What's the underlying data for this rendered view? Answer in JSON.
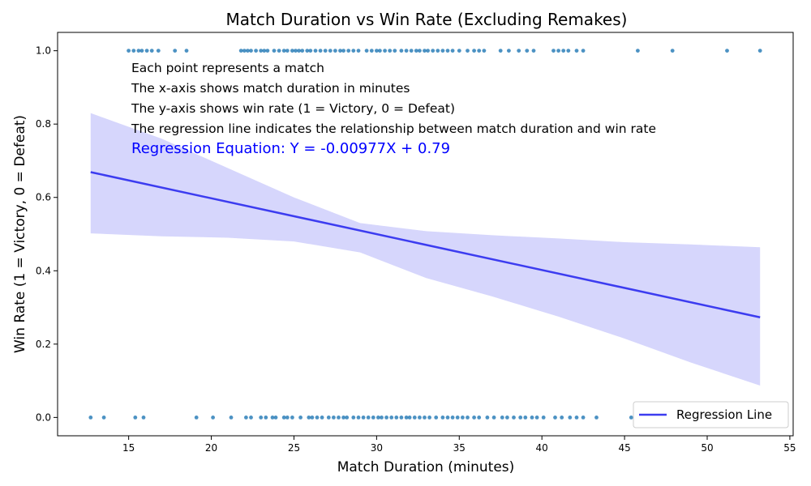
{
  "chart_data": {
    "type": "scatter",
    "title": "Match Duration vs Win Rate (Excluding Remakes)",
    "xlabel": "Match Duration (minutes)",
    "ylabel": "Win Rate (1 = Victory, 0 = Defeat)",
    "xlim": [
      10.7,
      55.2
    ],
    "ylim": [
      -0.05,
      1.05
    ],
    "xticks": [
      15,
      20,
      25,
      30,
      35,
      40,
      45,
      50,
      55
    ],
    "yticks": [
      0.0,
      0.2,
      0.4,
      0.6,
      0.8,
      1.0
    ],
    "grid": false,
    "legend": {
      "position": "bottom-right",
      "entries": [
        "Regression Line"
      ]
    },
    "annotations": [
      "Each point represents a match",
      "The x-axis shows match duration in minutes",
      "The y-axis shows win rate (1 = Victory, 0 = Defeat)",
      "The regression line indicates the relationship between match duration and win rate"
    ],
    "equation": "Regression Equation: Y = -0.00977X + 0.79",
    "colors": {
      "points": "#1f77b4",
      "regression": "#3c3cf0",
      "band": "#d6d6fc"
    },
    "series": [
      {
        "name": "Victory",
        "y": 1,
        "x": [
          15.0,
          15.3,
          15.6,
          15.8,
          16.1,
          16.4,
          16.8,
          17.8,
          18.5,
          21.8,
          22.0,
          22.2,
          22.4,
          22.7,
          23.0,
          23.2,
          23.4,
          23.8,
          24.1,
          24.4,
          24.6,
          24.9,
          25.1,
          25.3,
          25.5,
          25.8,
          26.0,
          26.3,
          26.6,
          26.9,
          27.2,
          27.5,
          27.8,
          28.0,
          28.3,
          28.6,
          28.9,
          29.4,
          29.7,
          30.0,
          30.2,
          30.5,
          30.8,
          31.1,
          31.5,
          31.8,
          32.1,
          32.4,
          32.6,
          32.9,
          33.1,
          33.4,
          33.7,
          34.0,
          34.3,
          34.6,
          35.0,
          35.5,
          35.9,
          36.2,
          36.5,
          37.5,
          38.0,
          38.6,
          39.1,
          39.5,
          40.7,
          41.0,
          41.3,
          41.6,
          42.1,
          42.5,
          45.8,
          47.9,
          51.2,
          53.2
        ],
        "fit_y": []
      },
      {
        "name": "Defeat",
        "y": 0,
        "x": [
          12.7,
          13.5,
          15.4,
          15.9,
          19.1,
          20.1,
          21.2,
          22.1,
          22.4,
          23.0,
          23.3,
          23.7,
          23.9,
          24.4,
          24.6,
          24.9,
          25.4,
          25.9,
          26.1,
          26.4,
          26.7,
          27.1,
          27.4,
          27.7,
          28.0,
          28.2,
          28.6,
          28.9,
          29.2,
          29.5,
          29.8,
          30.1,
          30.3,
          30.6,
          30.9,
          31.2,
          31.5,
          31.8,
          32.0,
          32.3,
          32.6,
          32.9,
          33.2,
          33.6,
          34.0,
          34.3,
          34.6,
          34.9,
          35.2,
          35.5,
          35.9,
          36.2,
          36.7,
          37.1,
          37.6,
          37.9,
          38.3,
          38.7,
          39.0,
          39.4,
          39.7,
          40.1,
          40.8,
          41.2,
          41.7,
          42.1,
          42.5,
          43.3,
          45.4
        ]
      }
    ],
    "regression": {
      "name": "Regression Line",
      "x": [
        12.7,
        53.2
      ],
      "y": [
        0.669,
        0.273
      ],
      "ci_upper": [
        [
          12.7,
          0.83
        ],
        [
          17,
          0.76
        ],
        [
          21,
          0.68
        ],
        [
          25,
          0.6
        ],
        [
          29,
          0.53
        ],
        [
          33,
          0.508
        ],
        [
          37,
          0.497
        ],
        [
          41,
          0.488
        ],
        [
          45,
          0.478
        ],
        [
          49,
          0.472
        ],
        [
          53.2,
          0.464
        ]
      ],
      "ci_lower": [
        [
          12.7,
          0.502
        ],
        [
          17,
          0.494
        ],
        [
          21,
          0.49
        ],
        [
          25,
          0.48
        ],
        [
          29,
          0.45
        ],
        [
          31,
          0.415
        ],
        [
          33,
          0.38
        ],
        [
          37,
          0.33
        ],
        [
          41,
          0.275
        ],
        [
          45,
          0.215
        ],
        [
          49,
          0.15
        ],
        [
          53.2,
          0.087
        ]
      ]
    }
  }
}
